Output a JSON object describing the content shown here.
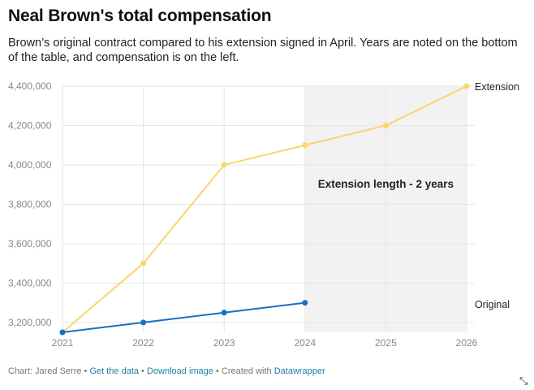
{
  "header": {
    "title": "Neal Brown's total compensation",
    "subtitle": "Brown’s original contract compared to his extension signed in April. Years are noted on the bottom of the table, and compensation is on the left."
  },
  "chart_data": {
    "type": "line",
    "x": [
      2021,
      2022,
      2023,
      2024,
      2025,
      2026
    ],
    "ylim": [
      3150000,
      4400000
    ],
    "y_ticks": [
      "3,200,000",
      "3,400,000",
      "3,600,000",
      "3,800,000",
      "4,000,000",
      "4,200,000",
      "4,400,000"
    ],
    "y_tick_values": [
      3200000,
      3400000,
      3600000,
      3800000,
      4000000,
      4200000,
      4400000
    ],
    "x_ticks": [
      "2021",
      "2022",
      "2023",
      "2024",
      "2025",
      "2026"
    ],
    "grid": true,
    "series": [
      {
        "name": "Extension",
        "color": "#fcd46b",
        "x": [
          2021,
          2022,
          2023,
          2024,
          2025,
          2026
        ],
        "values": [
          3150000,
          3500000,
          4000000,
          4100000,
          4200000,
          4400000
        ]
      },
      {
        "name": "Original",
        "color": "#1570c4",
        "x": [
          2021,
          2022,
          2023,
          2024
        ],
        "values": [
          3150000,
          3200000,
          3250000,
          3300000
        ]
      }
    ],
    "shaded_range": {
      "from": 2024,
      "to": 2026,
      "label": "Extension length - 2 years",
      "color": "#f2f2f2"
    }
  },
  "footer": {
    "credit": "Chart: Jared Serre",
    "sep": " • ",
    "get_data": "Get the data",
    "download": "Download image",
    "created": "Created with",
    "tool": "Datawrapper"
  }
}
